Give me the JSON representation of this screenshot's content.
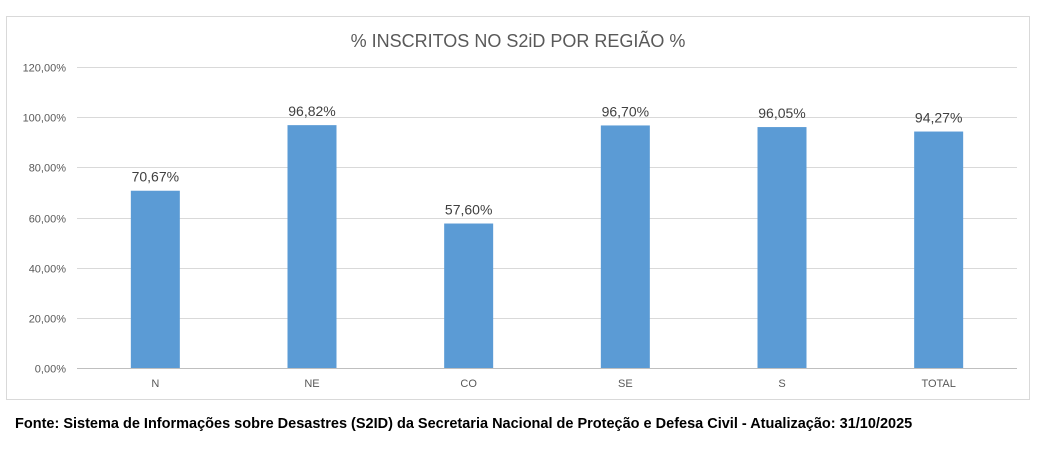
{
  "chart_data": {
    "type": "bar",
    "title": "% INSCRITOS NO S2iD POR REGIÃO %",
    "categories": [
      "N",
      "NE",
      "CO",
      "SE",
      "S",
      "TOTAL"
    ],
    "values": [
      70.67,
      96.82,
      57.6,
      96.7,
      96.05,
      94.27
    ],
    "data_labels": [
      "70,67%",
      "96,82%",
      "57,60%",
      "96,70%",
      "96,05%",
      "94,27%"
    ],
    "ylim": [
      0,
      120
    ],
    "yticks": [
      0,
      20,
      40,
      60,
      80,
      100,
      120
    ],
    "ytick_labels": [
      "0,00%",
      "20,00%",
      "40,00%",
      "60,00%",
      "80,00%",
      "100,00%",
      "120,00%"
    ],
    "xlabel": "",
    "ylabel": "",
    "grid": true,
    "legend": "none",
    "bar_color": "#5b9bd5"
  },
  "footer": {
    "source": "Fonte: Sistema de Informações sobre Desastres (S2ID) da Secretaria Nacional de Proteção e Defesa Civil - Atualização: 31/10/2025"
  }
}
